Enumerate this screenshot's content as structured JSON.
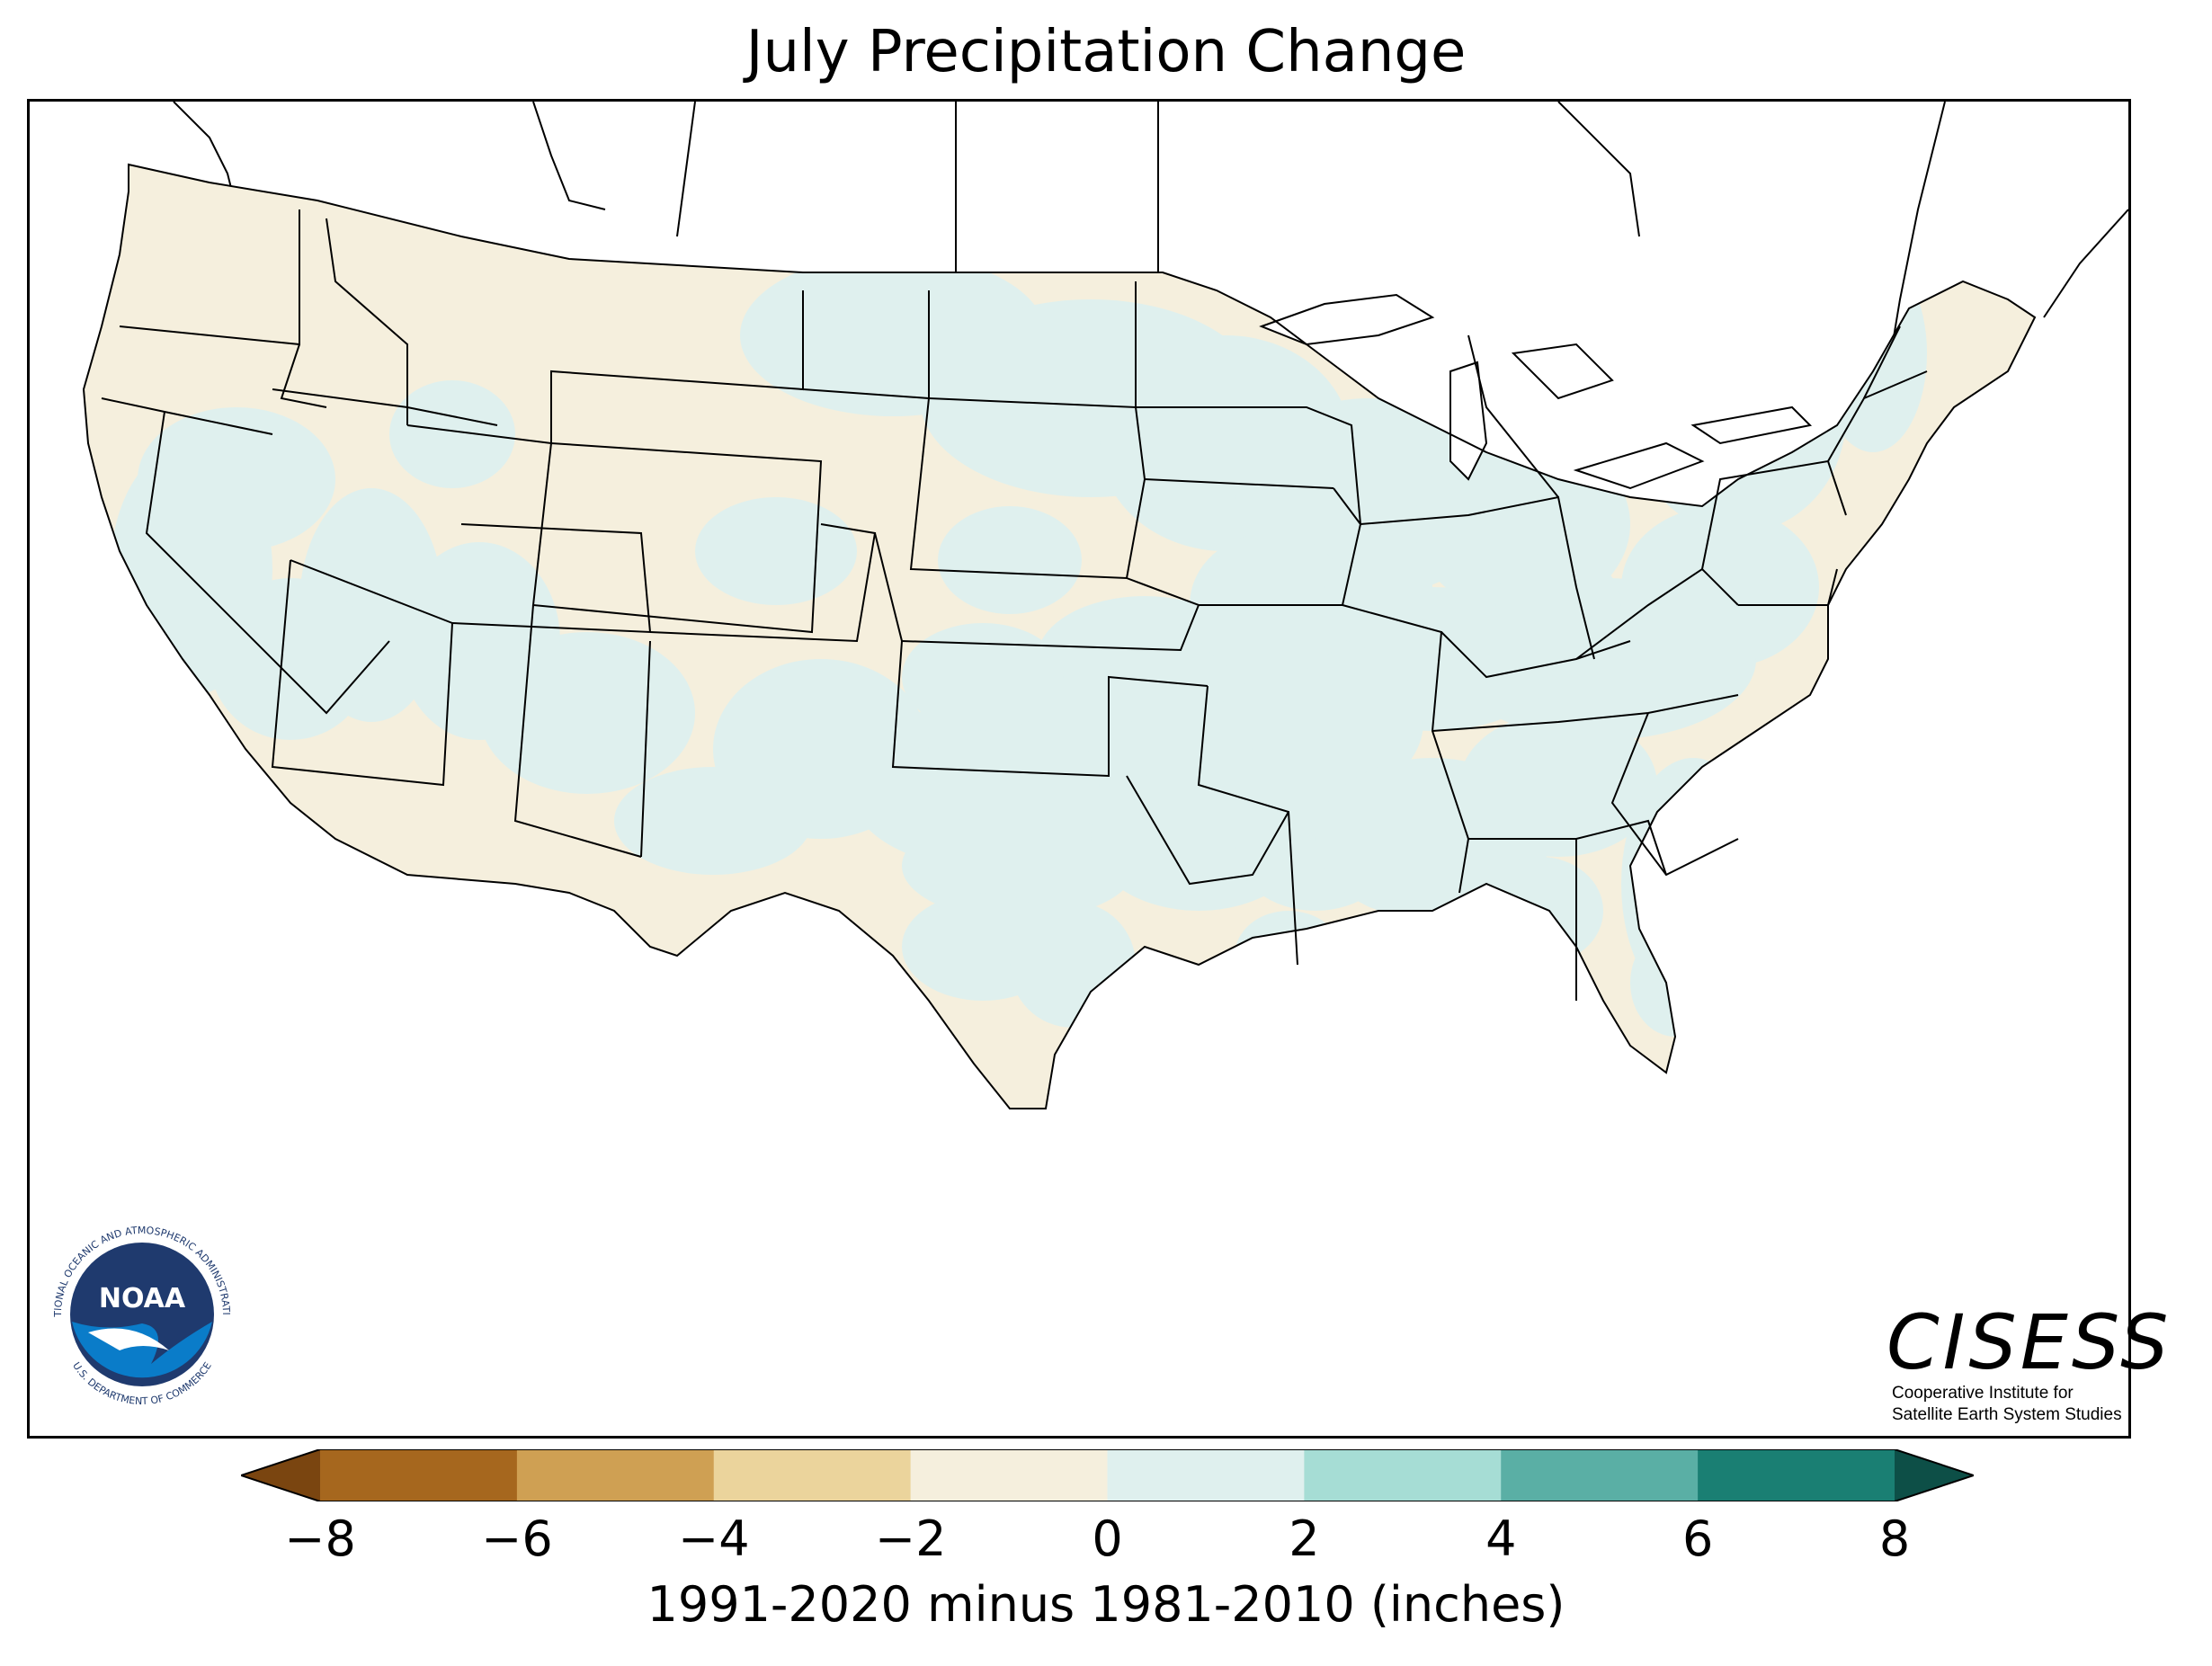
{
  "title": "July Precipitation Change",
  "colorbar": {
    "label": "1991-2020 minus 1981-2010 (inches)",
    "ticks": [
      "−8",
      "−6",
      "−4",
      "−2",
      "0",
      "2",
      "4",
      "6",
      "8"
    ],
    "colors": [
      "#a6671e",
      "#cfa053",
      "#ebd49c",
      "#f5efdd",
      "#dff0ee",
      "#a6ddd5",
      "#5aafa5",
      "#1a7f73"
    ],
    "extend_low_color": "#7a4510",
    "extend_high_color": "#0d4f47"
  },
  "map": {
    "region": "contiguous-united-states",
    "dry_color": "#f5efdd",
    "wet_color": "#dff0ee",
    "land_outline_color": "#000000"
  },
  "logos": {
    "noaa": {
      "word": "NOAA",
      "ring_top": "NATIONAL OCEANIC AND ATMOSPHERIC ADMINISTRATION",
      "ring_bottom": "U.S. DEPARTMENT OF COMMERCE"
    },
    "cisess": {
      "word": "CISESS",
      "line1": "Cooperative Institute for",
      "line2": "Satellite Earth System Studies"
    }
  }
}
